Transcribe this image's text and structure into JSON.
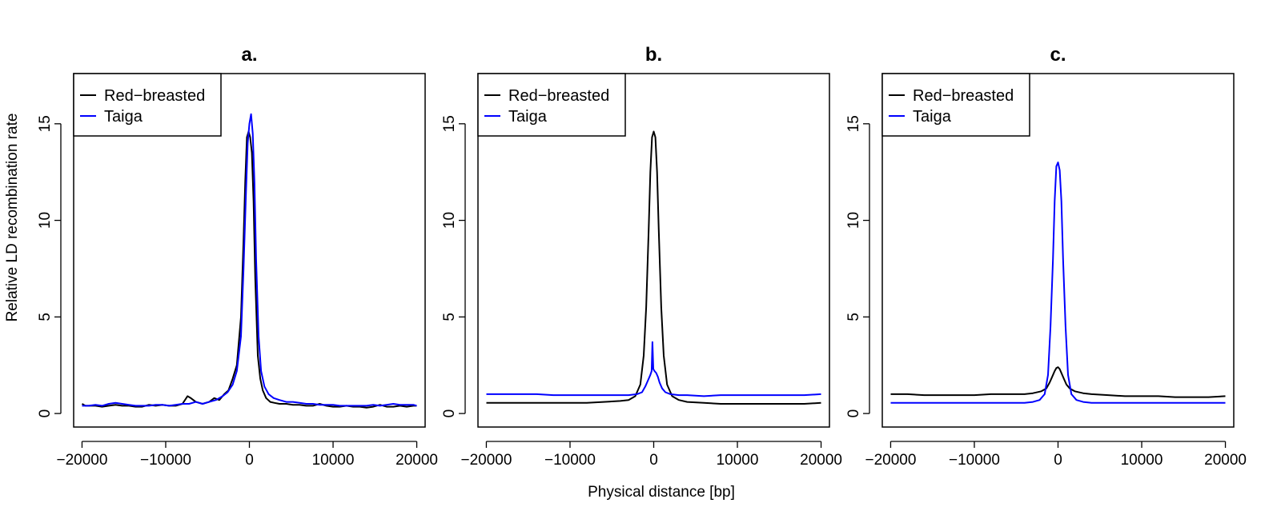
{
  "figure": {
    "xlabel": "Physical distance [bp]",
    "ylabel": "Relative LD recombination rate"
  },
  "chart_data": [
    {
      "type": "line",
      "title": "a.",
      "xlim": [
        -21000,
        21000
      ],
      "ylim": [
        -0.7,
        17.6
      ],
      "xticks": [
        -20000,
        -10000,
        0,
        10000,
        20000
      ],
      "yticks": [
        0,
        5,
        10,
        15
      ],
      "legend": "top-left",
      "series": [
        {
          "name": "Red−breasted",
          "color": "#000000",
          "x": [
            -20000,
            -19600,
            -19200,
            -18400,
            -17600,
            -16800,
            -16000,
            -15200,
            -14400,
            -13600,
            -12800,
            -12000,
            -11200,
            -10400,
            -9600,
            -8800,
            -8000,
            -7400,
            -7000,
            -6400,
            -5600,
            -4800,
            -4200,
            -3600,
            -3000,
            -2500,
            -2000,
            -1500,
            -1000,
            -700,
            -500,
            -300,
            -100,
            100,
            300,
            500,
            700,
            1000,
            1300,
            1600,
            2000,
            2500,
            3000,
            3600,
            4400,
            5200,
            6000,
            6800,
            7600,
            8400,
            9200,
            10000,
            10800,
            11600,
            12400,
            13200,
            14000,
            14800,
            15600,
            16400,
            17200,
            18000,
            18800,
            19600,
            20000
          ],
          "y": [
            0.5,
            0.4,
            0.4,
            0.4,
            0.35,
            0.4,
            0.45,
            0.4,
            0.4,
            0.35,
            0.35,
            0.45,
            0.4,
            0.45,
            0.4,
            0.4,
            0.5,
            0.9,
            0.8,
            0.6,
            0.5,
            0.6,
            0.8,
            0.7,
            1.0,
            1.2,
            1.8,
            2.5,
            5.0,
            9.0,
            12.0,
            14.3,
            14.6,
            14.3,
            13.5,
            11.0,
            7.0,
            3.0,
            1.8,
            1.2,
            0.8,
            0.6,
            0.55,
            0.5,
            0.5,
            0.45,
            0.45,
            0.4,
            0.4,
            0.5,
            0.4,
            0.35,
            0.35,
            0.4,
            0.35,
            0.35,
            0.3,
            0.35,
            0.45,
            0.35,
            0.35,
            0.4,
            0.35,
            0.4,
            0.4
          ]
        },
        {
          "name": "Taiga",
          "color": "#0000ff",
          "x": [
            -20000,
            -19200,
            -18400,
            -17600,
            -16800,
            -16000,
            -15200,
            -14400,
            -13600,
            -12800,
            -12000,
            -11200,
            -10400,
            -9600,
            -8800,
            -8000,
            -7200,
            -6400,
            -5600,
            -4800,
            -4000,
            -3200,
            -2600,
            -2000,
            -1500,
            -1000,
            -700,
            -400,
            -200,
            0,
            200,
            400,
            600,
            800,
            1100,
            1400,
            1800,
            2300,
            2900,
            3600,
            4400,
            5200,
            6000,
            6800,
            7600,
            8400,
            9200,
            10000,
            10800,
            11600,
            12400,
            13200,
            14000,
            14800,
            15600,
            16400,
            17200,
            18000,
            18800,
            19600,
            20000
          ],
          "y": [
            0.4,
            0.4,
            0.45,
            0.4,
            0.5,
            0.55,
            0.5,
            0.45,
            0.4,
            0.4,
            0.4,
            0.45,
            0.45,
            0.4,
            0.45,
            0.5,
            0.5,
            0.6,
            0.5,
            0.6,
            0.7,
            0.9,
            1.1,
            1.5,
            2.2,
            4.0,
            7.5,
            11.5,
            14.0,
            15.0,
            15.5,
            14.5,
            12.0,
            8.0,
            4.0,
            2.2,
            1.4,
            1.0,
            0.8,
            0.7,
            0.6,
            0.6,
            0.55,
            0.5,
            0.5,
            0.45,
            0.45,
            0.45,
            0.4,
            0.4,
            0.4,
            0.4,
            0.4,
            0.45,
            0.4,
            0.45,
            0.5,
            0.45,
            0.45,
            0.45,
            0.4
          ]
        }
      ]
    },
    {
      "type": "line",
      "title": "b.",
      "xlim": [
        -21000,
        21000
      ],
      "ylim": [
        -0.7,
        17.6
      ],
      "xticks": [
        -20000,
        -10000,
        0,
        10000,
        20000
      ],
      "yticks": [
        0,
        5,
        10,
        15
      ],
      "legend": "top-left",
      "series": [
        {
          "name": "Red−breasted",
          "color": "#000000",
          "x": [
            -20000,
            -18000,
            -16000,
            -14000,
            -12000,
            -10000,
            -8000,
            -6000,
            -4000,
            -3000,
            -2200,
            -1600,
            -1200,
            -900,
            -600,
            -400,
            -200,
            0,
            200,
            400,
            600,
            900,
            1200,
            1600,
            2200,
            3000,
            4000,
            6000,
            8000,
            10000,
            12000,
            14000,
            16000,
            18000,
            20000
          ],
          "y": [
            0.55,
            0.55,
            0.55,
            0.55,
            0.55,
            0.55,
            0.55,
            0.6,
            0.65,
            0.7,
            0.9,
            1.5,
            3.0,
            5.5,
            9.5,
            12.5,
            14.3,
            14.6,
            14.3,
            12.5,
            9.5,
            5.5,
            3.0,
            1.5,
            0.9,
            0.7,
            0.6,
            0.55,
            0.5,
            0.5,
            0.5,
            0.5,
            0.5,
            0.5,
            0.55
          ]
        },
        {
          "name": "Taiga",
          "color": "#0000ff",
          "x": [
            -20000,
            -18000,
            -16000,
            -14000,
            -12000,
            -10000,
            -8000,
            -6000,
            -4000,
            -3000,
            -2000,
            -1400,
            -1000,
            -700,
            -400,
            -250,
            -150,
            -50,
            100,
            300,
            500,
            700,
            1000,
            1400,
            2000,
            3000,
            4000,
            6000,
            8000,
            10000,
            12000,
            14000,
            16000,
            18000,
            20000
          ],
          "y": [
            1.0,
            1.0,
            1.0,
            1.0,
            0.95,
            0.95,
            0.95,
            0.95,
            0.95,
            0.95,
            1.0,
            1.1,
            1.4,
            1.7,
            2.0,
            2.2,
            3.7,
            2.3,
            2.2,
            2.1,
            1.9,
            1.6,
            1.3,
            1.1,
            1.0,
            0.95,
            0.95,
            0.9,
            0.95,
            0.95,
            0.95,
            0.95,
            0.95,
            0.95,
            1.0
          ]
        }
      ]
    },
    {
      "type": "line",
      "title": "c.",
      "xlim": [
        -21000,
        21000
      ],
      "ylim": [
        -0.7,
        17.6
      ],
      "xticks": [
        -20000,
        -10000,
        0,
        10000,
        20000
      ],
      "yticks": [
        0,
        5,
        10,
        15
      ],
      "legend": "top-left",
      "series": [
        {
          "name": "Red−breasted",
          "color": "#000000",
          "x": [
            -20000,
            -18000,
            -16000,
            -14000,
            -12000,
            -10000,
            -8000,
            -6000,
            -4000,
            -3000,
            -2000,
            -1400,
            -1000,
            -700,
            -400,
            -200,
            0,
            200,
            400,
            700,
            1000,
            1400,
            2000,
            3000,
            4000,
            6000,
            8000,
            10000,
            12000,
            14000,
            16000,
            18000,
            20000
          ],
          "y": [
            1.0,
            1.0,
            0.95,
            0.95,
            0.95,
            0.95,
            1.0,
            1.0,
            1.0,
            1.05,
            1.15,
            1.3,
            1.6,
            1.9,
            2.2,
            2.35,
            2.4,
            2.3,
            2.1,
            1.8,
            1.5,
            1.3,
            1.15,
            1.05,
            1.0,
            0.95,
            0.9,
            0.9,
            0.9,
            0.85,
            0.85,
            0.85,
            0.9
          ]
        },
        {
          "name": "Taiga",
          "color": "#0000ff",
          "x": [
            -20000,
            -18000,
            -16000,
            -14000,
            -12000,
            -10000,
            -8000,
            -6000,
            -4000,
            -3000,
            -2200,
            -1600,
            -1200,
            -900,
            -600,
            -400,
            -200,
            0,
            200,
            400,
            600,
            900,
            1200,
            1600,
            2200,
            3000,
            4000,
            6000,
            8000,
            10000,
            12000,
            14000,
            16000,
            18000,
            20000
          ],
          "y": [
            0.55,
            0.55,
            0.55,
            0.55,
            0.55,
            0.55,
            0.55,
            0.55,
            0.55,
            0.6,
            0.7,
            1.0,
            2.0,
            4.5,
            8.0,
            11.0,
            12.8,
            13.0,
            12.6,
            11.0,
            8.0,
            4.5,
            2.0,
            1.0,
            0.7,
            0.6,
            0.55,
            0.55,
            0.55,
            0.55,
            0.55,
            0.55,
            0.55,
            0.55,
            0.55
          ]
        }
      ]
    }
  ]
}
